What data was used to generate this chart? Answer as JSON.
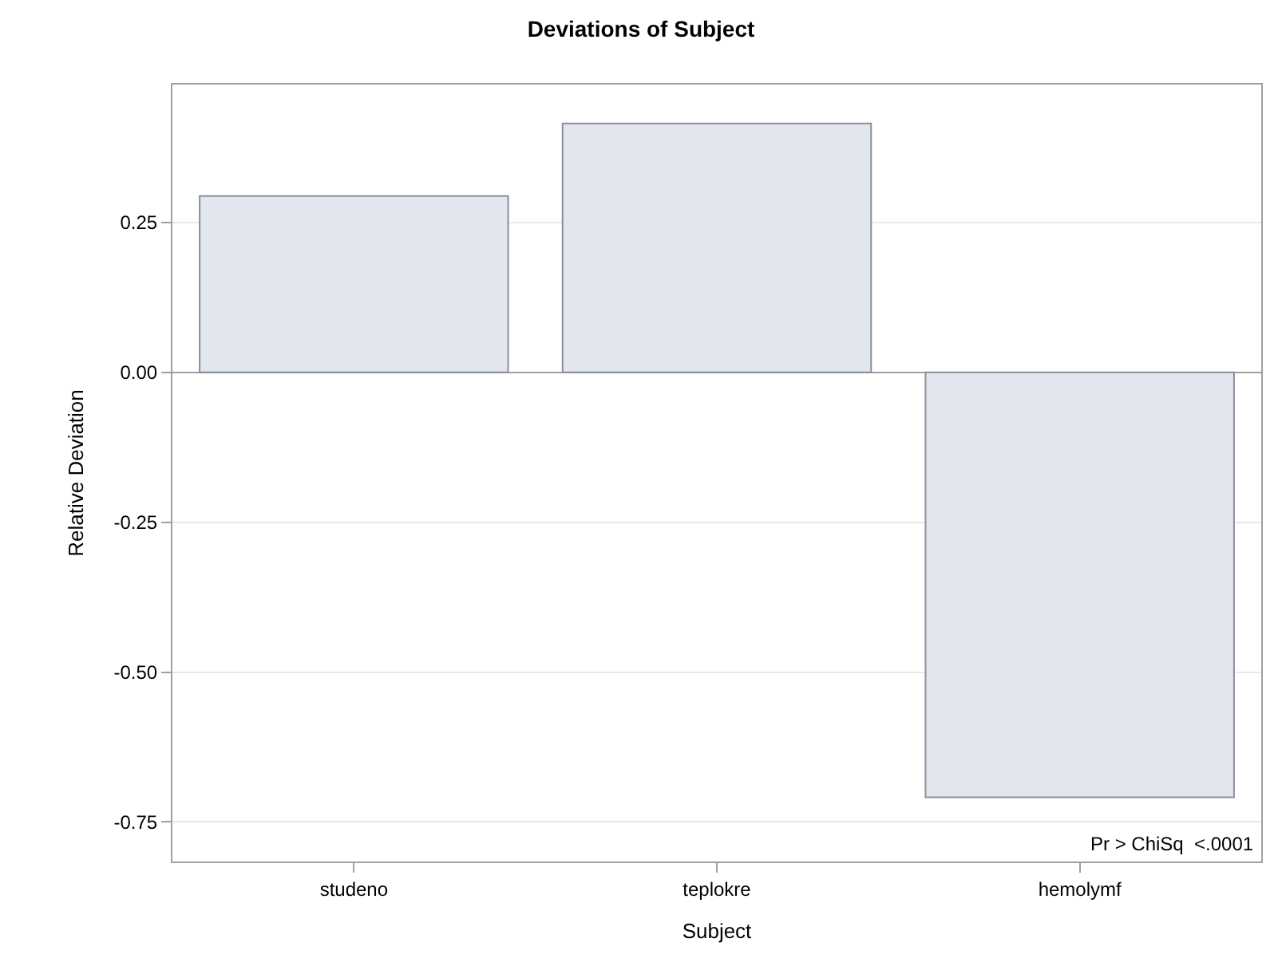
{
  "chart_data": {
    "type": "bar",
    "title": "Deviations of Subject",
    "xlabel": "Subject",
    "ylabel": "Relative Deviation",
    "categories": [
      "studeno",
      "teplokre",
      "hemolymf"
    ],
    "values": [
      0.294,
      0.415,
      -0.709
    ],
    "color": "#e2e6ef",
    "ylim": [
      -0.816,
      0.48
    ],
    "yticks": [
      {
        "value": 0.25,
        "label": "0.25"
      },
      {
        "value": 0,
        "label": "0.00"
      },
      {
        "value": -0.25,
        "label": "-0.25"
      },
      {
        "value": -0.5,
        "label": "-0.50"
      },
      {
        "value": -0.75,
        "label": "-0.75"
      }
    ],
    "grid": "y",
    "legend": false,
    "annotations": [
      "Pr > ChiSq  <.0001"
    ]
  }
}
